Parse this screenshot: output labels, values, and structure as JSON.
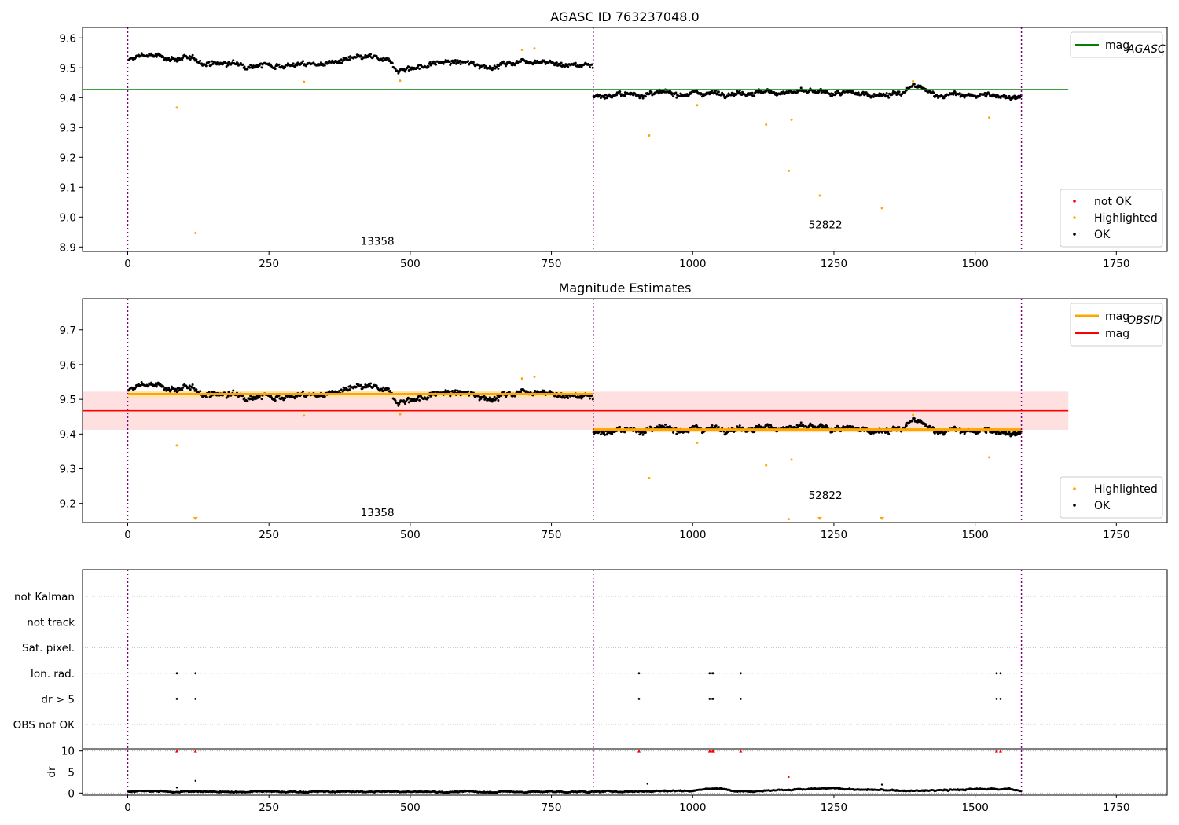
{
  "chart_data": [
    {
      "type": "scatter",
      "title": "AGASC ID 763237048.0",
      "xlim": [
        -80,
        1840
      ],
      "ylim": [
        8.885,
        9.635
      ],
      "xticks": [
        0,
        250,
        500,
        750,
        1000,
        1250,
        1500,
        1750
      ],
      "yticks": [
        8.9,
        9.0,
        9.1,
        9.2,
        9.3,
        9.4,
        9.5,
        9.6
      ],
      "ytick_labels": [
        "8.9",
        "9.0",
        "9.1",
        "9.2",
        "9.3",
        "9.4",
        "9.5",
        "9.6"
      ],
      "obs_boundaries": [
        0,
        824,
        1582
      ],
      "obs_labels": [
        {
          "text": "13358",
          "x": 412,
          "y": 8.908
        },
        {
          "text": "52822",
          "x": 1205,
          "y": 8.962
        }
      ],
      "mag_agasc": {
        "value": 9.427,
        "x_range": [
          -80,
          1665
        ]
      },
      "ok_segments": [
        {
          "x0": 0,
          "x1": 824,
          "base": [
            [
              0,
              9.52
            ],
            [
              25,
              9.545
            ],
            [
              60,
              9.535
            ],
            [
              100,
              9.53
            ],
            [
              150,
              9.515
            ],
            [
              250,
              9.51
            ],
            [
              300,
              9.51
            ],
            [
              350,
              9.515
            ],
            [
              430,
              9.535
            ],
            [
              460,
              9.52
            ],
            [
              480,
              9.495
            ],
            [
              520,
              9.505
            ],
            [
              560,
              9.52
            ],
            [
              600,
              9.515
            ],
            [
              650,
              9.505
            ],
            [
              700,
              9.525
            ],
            [
              740,
              9.525
            ],
            [
              760,
              9.51
            ],
            [
              824,
              9.51
            ]
          ],
          "noise": 0.01,
          "n": 620
        },
        {
          "x0": 824,
          "x1": 1582,
          "base": [
            [
              824,
              9.405
            ],
            [
              900,
              9.412
            ],
            [
              1100,
              9.418
            ],
            [
              1200,
              9.418
            ],
            [
              1300,
              9.412
            ],
            [
              1370,
              9.412
            ],
            [
              1390,
              9.44
            ],
            [
              1410,
              9.425
            ],
            [
              1430,
              9.41
            ],
            [
              1582,
              9.405
            ]
          ],
          "noise": 0.009,
          "n": 650
        }
      ],
      "highlighted": [
        [
          87,
          9.367
        ],
        [
          120,
          8.947
        ],
        [
          312,
          9.453
        ],
        [
          482,
          9.457
        ],
        [
          698,
          9.56
        ],
        [
          720,
          9.565
        ],
        [
          923,
          9.273
        ],
        [
          1008,
          9.375
        ],
        [
          1130,
          9.31
        ],
        [
          1170,
          9.155
        ],
        [
          1175,
          9.326
        ],
        [
          1225,
          9.072
        ],
        [
          1335,
          9.03
        ],
        [
          1390,
          9.455
        ],
        [
          1525,
          9.333
        ]
      ],
      "legend_top": [
        {
          "label": "mag",
          "sub": "AGASC",
          "color": "#008000"
        }
      ],
      "legend_bottom": [
        {
          "label": "not OK",
          "color": "#ff0000"
        },
        {
          "label": "Highlighted",
          "color": "#ffa500"
        },
        {
          "label": "OK",
          "color": "#000000"
        }
      ]
    },
    {
      "type": "scatter",
      "title": "Magnitude Estimates",
      "xlim": [
        -80,
        1840
      ],
      "ylim": [
        9.145,
        9.79
      ],
      "xticks": [
        0,
        250,
        500,
        750,
        1000,
        1250,
        1500,
        1750
      ],
      "yticks": [
        9.2,
        9.3,
        9.4,
        9.5,
        9.6,
        9.7
      ],
      "ytick_labels": [
        "9.2",
        "9.3",
        "9.4",
        "9.5",
        "9.6",
        "9.7"
      ],
      "obs_boundaries": [
        0,
        824,
        1582
      ],
      "obs_labels": [
        {
          "text": "13358",
          "x": 412,
          "y": 9.163
        },
        {
          "text": "52822",
          "x": 1205,
          "y": 9.213
        }
      ],
      "mag": {
        "value": 9.467,
        "band": [
          9.412,
          9.522
        ],
        "x_range": [
          -80,
          1665
        ]
      },
      "mag_obsid": [
        {
          "x0": 0,
          "x1": 824,
          "value": 9.515,
          "band": [
            9.505,
            9.525
          ]
        },
        {
          "x0": 824,
          "x1": 1582,
          "value": 9.413,
          "band": [
            9.405,
            9.421
          ]
        }
      ],
      "ok_ref": 0,
      "highlighted": [
        [
          87,
          9.367
        ],
        [
          312,
          9.453
        ],
        [
          482,
          9.457
        ],
        [
          698,
          9.56
        ],
        [
          720,
          9.565
        ],
        [
          923,
          9.273
        ],
        [
          1008,
          9.375
        ],
        [
          1130,
          9.31
        ],
        [
          1170,
          9.155
        ],
        [
          1175,
          9.326
        ],
        [
          1390,
          9.455
        ],
        [
          1525,
          9.333
        ]
      ],
      "lower_limits": [
        120,
        1225,
        1335
      ],
      "legend_top": [
        {
          "label": "mag",
          "sub": "OBSID",
          "color": "#ffa500"
        },
        {
          "label": "mag",
          "sub": "",
          "color": "#ff0000"
        }
      ],
      "legend_bottom": [
        {
          "label": "Highlighted",
          "color": "#ffa500"
        },
        {
          "label": "OK",
          "color": "#000000"
        }
      ]
    },
    {
      "type": "scatter",
      "title": "",
      "xlim": [
        -80,
        1840
      ],
      "xticks": [
        0,
        250,
        500,
        750,
        1000,
        1250,
        1500,
        1750
      ],
      "flag_rows": [
        "not Kalman",
        "not track",
        "Sat. pixel.",
        "Ion. rad.",
        "dr > 5",
        "OBS not OK"
      ],
      "flags": {
        "Ion. rad.": [
          87,
          120,
          905,
          1030,
          1035,
          1037,
          1085,
          1538,
          1545
        ],
        "dr > 5": [
          87,
          120,
          905,
          1030,
          1035,
          1037,
          1085,
          1538,
          1545
        ]
      },
      "obs_boundaries": [
        0,
        824,
        1582
      ],
      "dr_ylabel": "dr",
      "dr_ylim": [
        -0.5,
        10.5
      ],
      "dr_yticks": [
        0,
        5,
        10
      ],
      "dr_ytick_labels": [
        "0",
        "5",
        "10"
      ],
      "dr_clipped": [
        87,
        120,
        905,
        1030,
        1035,
        1037,
        1085,
        1538,
        1545
      ],
      "dr_outliers": [
        [
          87,
          1.3
        ],
        [
          120,
          2.9
        ],
        [
          920,
          2.2
        ],
        [
          1170,
          3.8
        ],
        [
          1335,
          2.0
        ]
      ],
      "dr_base": [
        [
          0,
          0.4
        ],
        [
          200,
          0.3
        ],
        [
          400,
          0.3
        ],
        [
          600,
          0.3
        ],
        [
          824,
          0.3
        ],
        [
          1000,
          0.6
        ],
        [
          1030,
          1.1
        ],
        [
          1100,
          0.5
        ],
        [
          1250,
          1.1
        ],
        [
          1300,
          0.8
        ],
        [
          1400,
          0.5
        ],
        [
          1500,
          0.9
        ],
        [
          1560,
          1.1
        ],
        [
          1582,
          0.3
        ]
      ]
    }
  ]
}
